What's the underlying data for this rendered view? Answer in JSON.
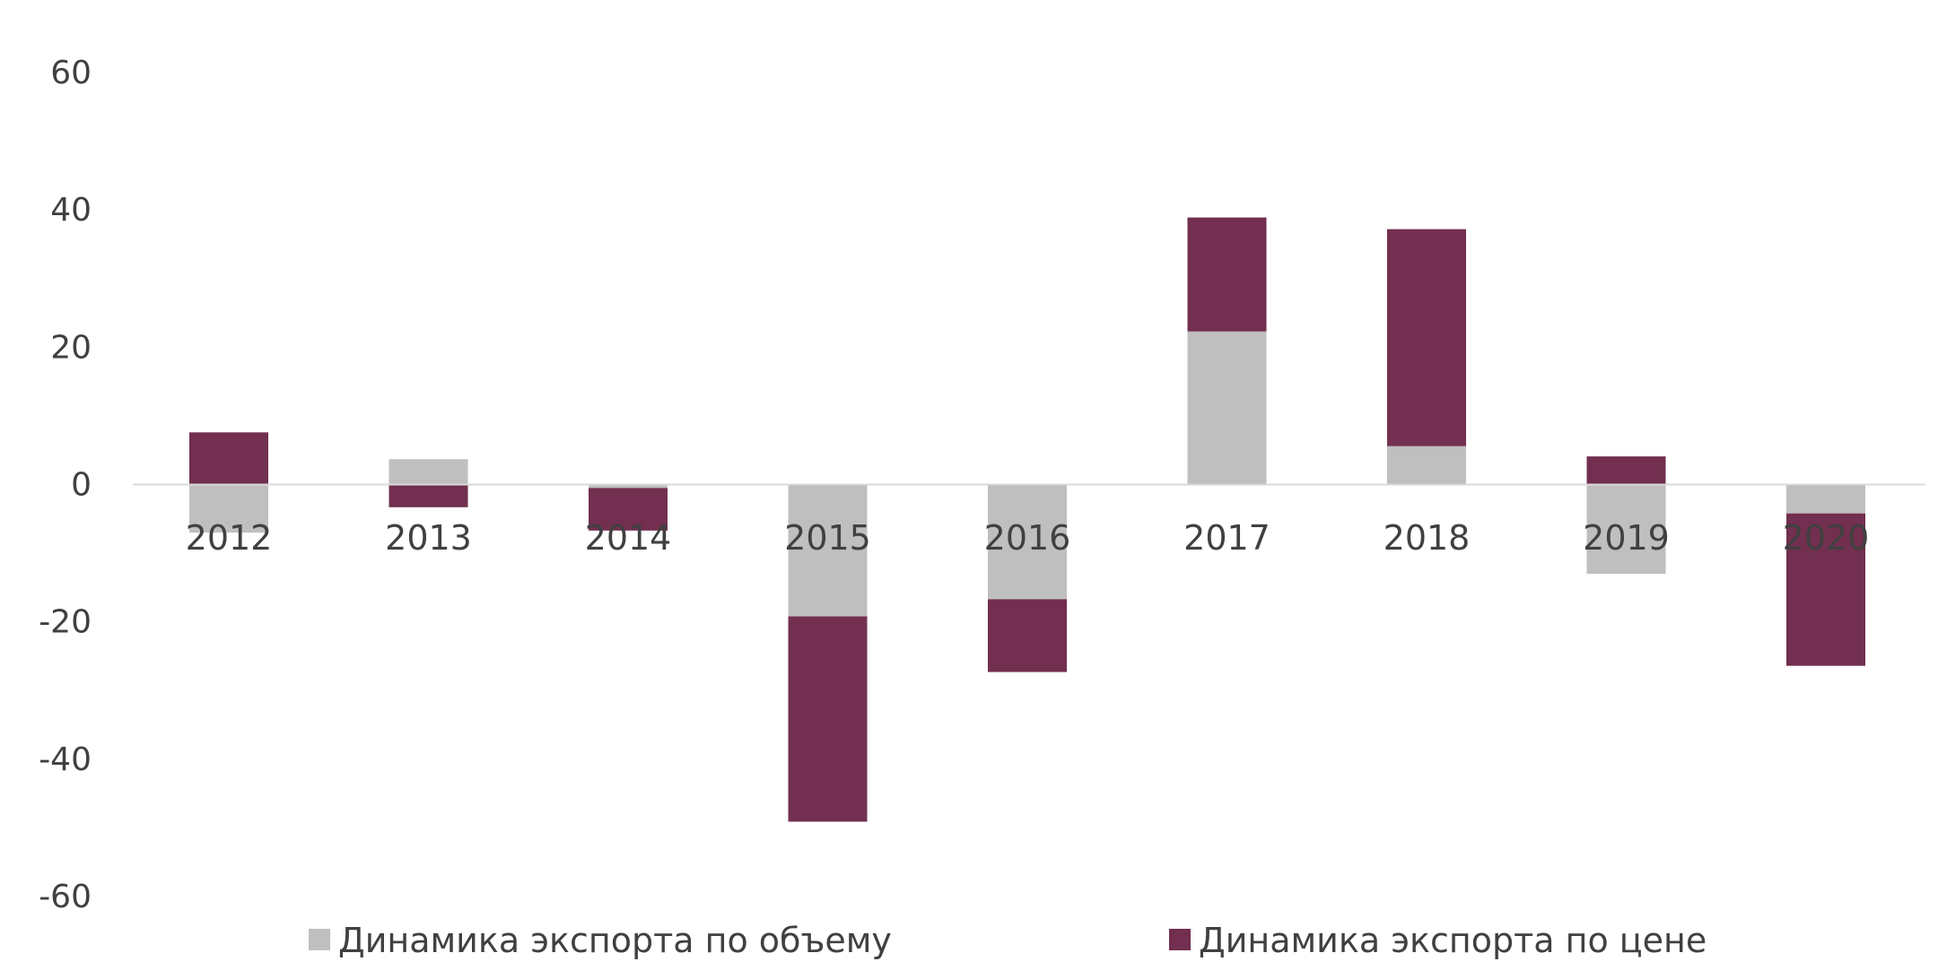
{
  "chart_data": {
    "type": "bar",
    "stacked": true,
    "title": "",
    "xlabel": "",
    "ylabel": "",
    "ylim": [
      -60,
      60
    ],
    "yticks": [
      60,
      40,
      20,
      0,
      -20,
      -40,
      -60
    ],
    "grid": false,
    "legend_position": "bottom",
    "categories": [
      "2012",
      "2013",
      "2014",
      "2015",
      "2016",
      "2017",
      "2018",
      "2019",
      "2020"
    ],
    "series": [
      {
        "name": "Динамика экспорта по объему",
        "color": "#bfbfbf",
        "values": [
          -7,
          3.7,
          -0.5,
          -19.2,
          -16.7,
          22.3,
          5.6,
          -13,
          -4.2
        ]
      },
      {
        "name": "Динамика экспорта по цене",
        "color": "#722f4f",
        "values": [
          7.6,
          -3.3,
          -6.2,
          -29.9,
          -10.6,
          16.6,
          31.6,
          4.1,
          -22.2
        ]
      }
    ]
  }
}
